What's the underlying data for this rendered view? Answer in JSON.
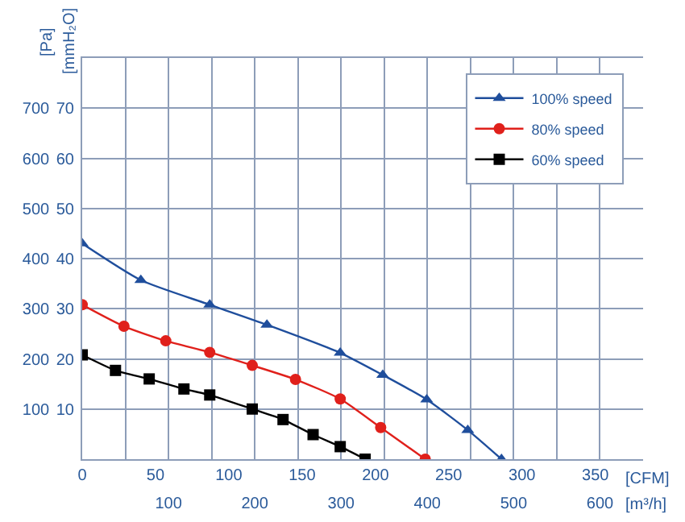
{
  "chart_data": {
    "type": "line",
    "xlabel": "[CFM]",
    "x2label": "[m³/h]",
    "ylabel": "[Pa]",
    "y2label": "[mmH₂O]",
    "xlim": [
      0,
      382.6
    ],
    "xticks": [
      0,
      50,
      100,
      150,
      200,
      250,
      300,
      350
    ],
    "x2lim": [
      0,
      650
    ],
    "x2ticks": [
      {
        "value": 50,
        "label": null
      },
      100,
      {
        "value": 150,
        "label": null
      },
      200,
      {
        "value": 250,
        "label": null
      },
      300,
      {
        "value": 350,
        "label": null
      },
      400,
      {
        "value": 450,
        "label": null
      },
      500,
      {
        "value": 550,
        "label": null
      },
      600
    ],
    "ylim": [
      0,
      800
    ],
    "yticks": [
      100,
      200,
      300,
      400,
      500,
      600,
      700
    ],
    "y2lim": [
      0,
      80
    ],
    "y2ticks": [
      10,
      20,
      30,
      40,
      50,
      60,
      70
    ],
    "grid": true,
    "legend": "top right",
    "series": [
      {
        "name": "100% speed",
        "color": "#1f4e9c",
        "marker": "triangle",
        "x": [
          0,
          40,
          87,
          126,
          176,
          205,
          235,
          263,
          286
        ],
        "values": [
          430,
          357,
          308,
          268,
          212,
          168,
          119,
          58,
          0
        ]
      },
      {
        "name": "80% speed",
        "color": "#e0201b",
        "marker": "circle",
        "x": [
          0,
          28.5,
          57,
          87,
          116,
          145.5,
          176,
          203.6,
          234
        ],
        "values": [
          308,
          265,
          236,
          213,
          187,
          159,
          120,
          63,
          0
        ]
      },
      {
        "name": "60% speed",
        "color": "#000000",
        "marker": "square",
        "x": [
          0,
          22.7,
          45.7,
          69.4,
          87,
          116,
          137,
          157.5,
          176,
          193
        ],
        "values": [
          208,
          177,
          160,
          140,
          128,
          100,
          79,
          49,
          25,
          0
        ]
      }
    ]
  }
}
